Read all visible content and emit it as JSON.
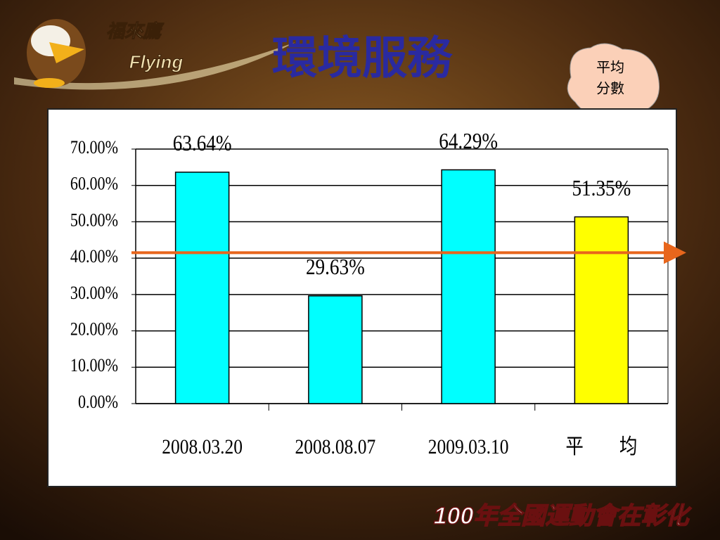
{
  "logo": {
    "name": "福來鷹",
    "subtitle": "Flying"
  },
  "title": "環境服務",
  "callout": [
    "平均",
    "分數"
  ],
  "footer": "100年全國運動會在彰化",
  "chart_data": {
    "type": "bar",
    "categories": [
      "2008.03.20",
      "2008.08.07",
      "2009.03.10",
      "平　　均"
    ],
    "values": [
      63.64,
      29.63,
      64.29,
      51.35
    ],
    "value_labels": [
      "63.64%",
      "29.63%",
      "64.29%",
      "51.35%"
    ],
    "colors": [
      "#00ffff",
      "#00ffff",
      "#00ffff",
      "#ffff00"
    ],
    "ylim": [
      0,
      70
    ],
    "yticks": [
      {
        "value": 0,
        "label": "0.00%"
      },
      {
        "value": 10,
        "label": "10.00%"
      },
      {
        "value": 20,
        "label": "20.00%"
      },
      {
        "value": 30,
        "label": "30.00%"
      },
      {
        "value": 40,
        "label": "40.00%"
      },
      {
        "value": 50,
        "label": "50.00%"
      },
      {
        "value": 60,
        "label": "60.00%"
      },
      {
        "value": 70,
        "label": "70.00%"
      }
    ],
    "grid": true,
    "reference_line": {
      "value": 41.5,
      "color": "#e8661c"
    }
  }
}
